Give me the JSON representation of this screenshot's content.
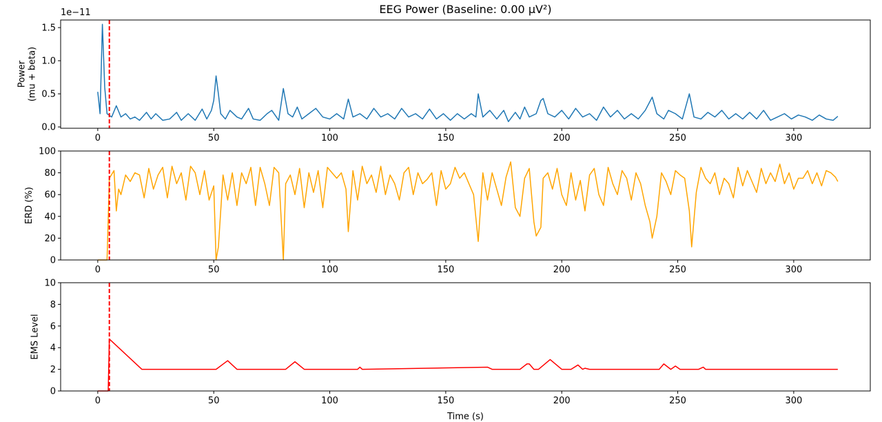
{
  "chart_data": [
    {
      "type": "line",
      "title": "EEG Power (Baseline: 0.00 µV²)",
      "ylabel": [
        "Power",
        "(mu + beta)"
      ],
      "offset_text": "1e−11",
      "x": [
        0,
        1,
        2,
        3,
        4,
        6,
        8,
        10,
        12,
        14,
        16,
        18,
        21,
        23,
        25,
        28,
        31,
        34,
        36,
        39,
        42,
        45,
        47,
        49,
        50,
        51,
        52,
        53,
        55,
        57,
        60,
        62,
        65,
        67,
        70,
        73,
        75,
        78,
        80,
        82,
        84,
        86,
        88,
        91,
        94,
        97,
        100,
        103,
        106,
        108,
        110,
        113,
        116,
        119,
        122,
        125,
        128,
        131,
        134,
        137,
        140,
        143,
        146,
        149,
        152,
        155,
        158,
        161,
        163,
        164,
        166,
        169,
        172,
        175,
        177,
        180,
        182,
        184,
        186,
        189,
        191,
        192,
        194,
        197,
        200,
        203,
        206,
        209,
        212,
        215,
        218,
        221,
        224,
        227,
        230,
        233,
        236,
        239,
        241,
        244,
        246,
        249,
        252,
        255,
        257,
        260,
        263,
        266,
        269,
        272,
        275,
        278,
        281,
        284,
        287,
        290,
        293,
        296,
        299,
        302,
        305,
        308,
        311,
        314,
        317,
        319
      ],
      "values": [
        0.53,
        0.2,
        1.55,
        0.6,
        0.2,
        0.15,
        0.32,
        0.15,
        0.2,
        0.12,
        0.15,
        0.1,
        0.22,
        0.12,
        0.2,
        0.1,
        0.12,
        0.22,
        0.1,
        0.2,
        0.1,
        0.27,
        0.12,
        0.25,
        0.4,
        0.77,
        0.5,
        0.2,
        0.12,
        0.25,
        0.15,
        0.12,
        0.28,
        0.12,
        0.1,
        0.2,
        0.25,
        0.1,
        0.58,
        0.2,
        0.15,
        0.3,
        0.12,
        0.2,
        0.28,
        0.15,
        0.12,
        0.2,
        0.12,
        0.42,
        0.15,
        0.2,
        0.12,
        0.28,
        0.15,
        0.2,
        0.12,
        0.28,
        0.15,
        0.2,
        0.12,
        0.27,
        0.12,
        0.2,
        0.1,
        0.2,
        0.12,
        0.2,
        0.15,
        0.5,
        0.15,
        0.25,
        0.12,
        0.25,
        0.08,
        0.22,
        0.12,
        0.3,
        0.15,
        0.2,
        0.4,
        0.43,
        0.2,
        0.15,
        0.25,
        0.12,
        0.28,
        0.15,
        0.2,
        0.1,
        0.3,
        0.15,
        0.25,
        0.12,
        0.2,
        0.12,
        0.25,
        0.45,
        0.2,
        0.12,
        0.25,
        0.2,
        0.12,
        0.5,
        0.15,
        0.12,
        0.22,
        0.15,
        0.25,
        0.12,
        0.2,
        0.12,
        0.22,
        0.12,
        0.25,
        0.1,
        0.15,
        0.2,
        0.12,
        0.18,
        0.15,
        0.1,
        0.18,
        0.12,
        0.1,
        0.16
      ],
      "color": "#1f77b4",
      "xlim": [
        -16,
        333
      ],
      "xticks": [
        0,
        50,
        100,
        150,
        200,
        250,
        300
      ],
      "ylim": [
        -0.02,
        1.615
      ],
      "yticks": [
        {
          "value": 0,
          "label": "0.0"
        },
        0.5,
        {
          "value": 1,
          "label": "1.0"
        },
        1.5
      ],
      "vline": {
        "x": 5,
        "color": "#ff0000"
      }
    },
    {
      "type": "line",
      "ylabel": [
        "ERD (%)"
      ],
      "x": [
        0,
        4,
        5,
        7,
        8,
        9,
        10,
        12,
        14,
        16,
        18,
        20,
        22,
        24,
        26,
        28,
        30,
        32,
        34,
        36,
        38,
        40,
        42,
        44,
        46,
        48,
        50,
        51,
        52,
        54,
        56,
        58,
        60,
        62,
        64,
        66,
        68,
        70,
        72,
        74,
        76,
        78,
        80,
        81,
        83,
        85,
        87,
        89,
        91,
        93,
        95,
        97,
        99,
        101,
        103,
        105,
        107,
        108,
        110,
        112,
        114,
        116,
        118,
        120,
        122,
        124,
        126,
        128,
        130,
        132,
        134,
        136,
        138,
        140,
        142,
        144,
        146,
        148,
        150,
        152,
        154,
        156,
        158,
        160,
        162,
        164,
        166,
        168,
        170,
        172,
        174,
        176,
        178,
        180,
        182,
        184,
        186,
        188,
        189,
        191,
        192,
        194,
        196,
        198,
        200,
        202,
        204,
        206,
        208,
        210,
        212,
        214,
        216,
        218,
        220,
        222,
        224,
        226,
        228,
        230,
        232,
        234,
        236,
        238,
        239,
        241,
        243,
        245,
        247,
        249,
        251,
        253,
        255,
        256,
        258,
        260,
        262,
        264,
        266,
        268,
        270,
        272,
        274,
        276,
        278,
        280,
        282,
        284,
        286,
        288,
        290,
        292,
        294,
        296,
        298,
        300,
        302,
        304,
        306,
        308,
        310,
        312,
        314,
        316,
        318,
        319
      ],
      "values": [
        0,
        0,
        75,
        82,
        45,
        65,
        60,
        78,
        72,
        80,
        78,
        57,
        84,
        65,
        78,
        85,
        57,
        86,
        70,
        80,
        55,
        86,
        80,
        60,
        82,
        55,
        68,
        0,
        12,
        78,
        55,
        80,
        50,
        80,
        70,
        85,
        50,
        85,
        70,
        50,
        85,
        80,
        0,
        70,
        78,
        60,
        84,
        48,
        80,
        62,
        82,
        48,
        85,
        80,
        75,
        80,
        65,
        26,
        82,
        55,
        86,
        70,
        78,
        62,
        86,
        60,
        78,
        70,
        55,
        80,
        85,
        60,
        80,
        70,
        74,
        80,
        50,
        82,
        65,
        70,
        85,
        75,
        80,
        70,
        60,
        17,
        80,
        55,
        80,
        65,
        50,
        76,
        90,
        48,
        40,
        75,
        84,
        35,
        22,
        30,
        75,
        80,
        65,
        84,
        60,
        50,
        80,
        55,
        73,
        45,
        78,
        84,
        60,
        50,
        85,
        70,
        60,
        82,
        75,
        55,
        80,
        70,
        50,
        35,
        20,
        40,
        80,
        72,
        60,
        82,
        78,
        75,
        45,
        12,
        62,
        85,
        75,
        70,
        80,
        60,
        75,
        70,
        57,
        85,
        68,
        82,
        72,
        62,
        84,
        70,
        80,
        72,
        88,
        70,
        80,
        65,
        75,
        75,
        82,
        70,
        80,
        68,
        82,
        80,
        76,
        72
      ],
      "color": "#ffa500",
      "xlim": [
        -16,
        333
      ],
      "xticks": [
        0,
        50,
        100,
        150,
        200,
        250,
        300
      ],
      "ylim": [
        0,
        100
      ],
      "yticks": [
        0,
        20,
        40,
        60,
        80,
        100
      ],
      "vline": {
        "x": 5,
        "color": "#ff0000"
      }
    },
    {
      "type": "line",
      "ylabel": [
        "EMS Level"
      ],
      "xlabel": "Time (s)",
      "x": [
        0,
        4.5,
        5,
        19,
        51,
        56,
        60,
        81,
        85,
        89,
        112,
        113,
        114,
        168,
        170,
        182,
        185,
        186,
        188,
        190,
        195,
        200,
        204,
        207,
        209,
        210,
        212,
        242,
        244,
        247,
        249,
        251,
        259,
        261,
        262,
        319
      ],
      "values": [
        0,
        0,
        4.8,
        2,
        2,
        2.8,
        2,
        2,
        2.7,
        2,
        2,
        2.2,
        2,
        2.2,
        2,
        2,
        2.5,
        2.5,
        2,
        2,
        2.9,
        2,
        2,
        2.4,
        2,
        2.1,
        2,
        2,
        2.5,
        2,
        2.3,
        2,
        2,
        2.2,
        2,
        2
      ],
      "color": "#ff0000",
      "xlim": [
        -16,
        333
      ],
      "xticks": [
        0,
        50,
        100,
        150,
        200,
        250,
        300
      ],
      "ylim": [
        0,
        10
      ],
      "yticks": [
        0,
        2,
        4,
        6,
        8,
        10
      ],
      "vline": {
        "x": 5,
        "color": "#ff0000"
      }
    }
  ]
}
